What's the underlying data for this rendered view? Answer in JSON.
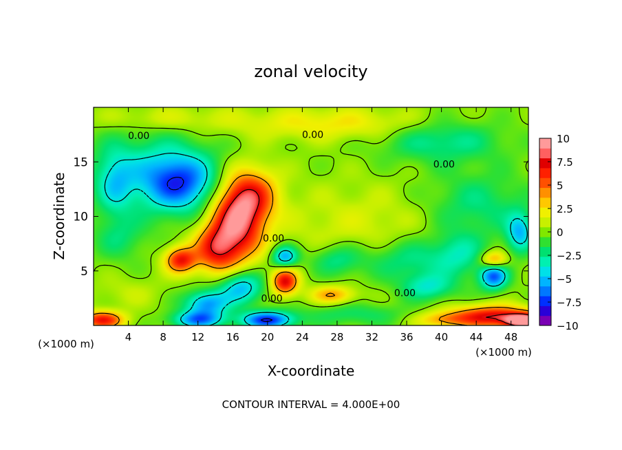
{
  "chart_data": {
    "type": "heatmap",
    "title": "zonal velocity",
    "xlabel": "X-coordinate",
    "ylabel": "Z-coordinate",
    "x_unit_left": "(×1000 m)",
    "x_unit_right": "(×1000 m)",
    "footer": "CONTOUR INTERVAL = 4.000E+00",
    "xlim": [
      0,
      50
    ],
    "ylim": [
      0,
      20
    ],
    "x_ticks": [
      4,
      8,
      12,
      16,
      20,
      24,
      28,
      32,
      36,
      40,
      44,
      48
    ],
    "y_ticks": [
      5,
      10,
      15
    ],
    "colorbar": {
      "min": -10,
      "max": 10,
      "ticks": [
        "10",
        "7.5",
        "5",
        "2.5",
        "0",
        "−2.5",
        "−5",
        "−7.5",
        "−10"
      ],
      "colors": [
        "#7a00b4",
        "#2a00d8",
        "#0030ff",
        "#0078ff",
        "#00b4ff",
        "#00e0e8",
        "#00f0b0",
        "#00e070",
        "#30e030",
        "#80e800",
        "#c8f000",
        "#f0f000",
        "#ffc800",
        "#ff9000",
        "#ff5000",
        "#ff2000",
        "#e00000",
        "#ff6060",
        "#ff9a9a"
      ]
    },
    "contour_labels": [
      {
        "x": 5.2,
        "z": 17.4,
        "text": "0.00"
      },
      {
        "x": 25.2,
        "z": 17.5,
        "text": "0.00"
      },
      {
        "x": 40.3,
        "z": 14.8,
        "text": "0.00"
      },
      {
        "x": 20.7,
        "z": 8.0,
        "text": "0.00"
      },
      {
        "x": 20.5,
        "z": 2.5,
        "text": "0.00"
      },
      {
        "x": 35.8,
        "z": 3.0,
        "text": "0.00"
      }
    ],
    "anomalies": [
      {
        "x": 16.5,
        "z": 9.5,
        "v": 8.5,
        "rx": 3.0,
        "rz": 3.5
      },
      {
        "x": 18.3,
        "z": 12.0,
        "v": 5.0,
        "rx": 3.0,
        "rz": 2.5
      },
      {
        "x": 14.0,
        "z": 7.0,
        "v": 6.0,
        "rx": 2.5,
        "rz": 2.2
      },
      {
        "x": 10.0,
        "z": 6.0,
        "v": 7.0,
        "rx": 1.8,
        "rz": 1.2
      },
      {
        "x": 22.0,
        "z": 4.0,
        "v": 7.5,
        "rx": 1.5,
        "rz": 1.2
      },
      {
        "x": 27.5,
        "z": 2.8,
        "v": 4.0,
        "rx": 2.5,
        "rz": 0.8
      },
      {
        "x": 46.0,
        "z": 6.0,
        "v": 5.0,
        "rx": 1.5,
        "rz": 0.8
      },
      {
        "x": 46.0,
        "z": 0.8,
        "v": 8.0,
        "rx": 5.0,
        "rz": 1.0
      },
      {
        "x": 49.5,
        "z": 0.4,
        "v": 10.0,
        "rx": 2.0,
        "rz": 0.6
      },
      {
        "x": 1.0,
        "z": 0.5,
        "v": 7.0,
        "rx": 2.5,
        "rz": 0.8
      },
      {
        "x": 40.0,
        "z": 0.5,
        "v": 3.0,
        "rx": 3.0,
        "rz": 0.7
      },
      {
        "x": 31.0,
        "z": 9.0,
        "v": 1.5,
        "rx": 10.0,
        "rz": 4.0
      },
      {
        "x": 28.0,
        "z": 18.5,
        "v": 2.5,
        "rx": 12.0,
        "rz": 1.5
      },
      {
        "x": 8.0,
        "z": 19.0,
        "v": 1.5,
        "rx": 8.0,
        "rz": 1.2
      },
      {
        "x": 10.0,
        "z": 13.0,
        "v": -5.5,
        "rx": 4.0,
        "rz": 2.5
      },
      {
        "x": 7.0,
        "z": 14.0,
        "v": -3.5,
        "rx": 7.0,
        "rz": 3.5
      },
      {
        "x": 2.5,
        "z": 13.0,
        "v": -3.0,
        "rx": 2.0,
        "rz": 3.0
      },
      {
        "x": 22.0,
        "z": 6.3,
        "v": -6.0,
        "rx": 1.5,
        "rz": 1.0
      },
      {
        "x": 17.0,
        "z": 3.5,
        "v": -5.5,
        "rx": 2.5,
        "rz": 1.5
      },
      {
        "x": 13.0,
        "z": 2.0,
        "v": -6.0,
        "rx": 2.5,
        "rz": 1.2
      },
      {
        "x": 20.0,
        "z": 0.5,
        "v": -8.0,
        "rx": 3.0,
        "rz": 0.8
      },
      {
        "x": 12.0,
        "z": 0.5,
        "v": -6.0,
        "rx": 3.0,
        "rz": 0.8
      },
      {
        "x": 28.0,
        "z": 6.0,
        "v": -3.0,
        "rx": 3.0,
        "rz": 1.5
      },
      {
        "x": 46.0,
        "z": 4.5,
        "v": -7.0,
        "rx": 1.6,
        "rz": 1.2
      },
      {
        "x": 49.0,
        "z": 8.5,
        "v": -5.0,
        "rx": 1.5,
        "rz": 1.8
      },
      {
        "x": 42.0,
        "z": 6.5,
        "v": -3.0,
        "rx": 3.0,
        "rz": 2.0
      },
      {
        "x": 38.5,
        "z": 3.5,
        "v": -3.5,
        "rx": 3.0,
        "rz": 1.2
      },
      {
        "x": 36.0,
        "z": 6.0,
        "v": -3.0,
        "rx": 5.0,
        "rz": 2.0
      },
      {
        "x": 44.0,
        "z": 11.0,
        "v": -2.5,
        "rx": 6.0,
        "rz": 3.0
      },
      {
        "x": 40.0,
        "z": 17.0,
        "v": -3.0,
        "rx": 7.0,
        "rz": 2.0
      },
      {
        "x": 3.0,
        "z": 8.0,
        "v": -2.0,
        "rx": 3.0,
        "rz": 2.0
      },
      {
        "x": 4.0,
        "z": 3.0,
        "v": 1.0,
        "rx": 4.0,
        "rz": 1.5
      },
      {
        "x": 30.0,
        "z": 1.0,
        "v": -2.0,
        "rx": 6.0,
        "rz": 1.0
      }
    ]
  }
}
